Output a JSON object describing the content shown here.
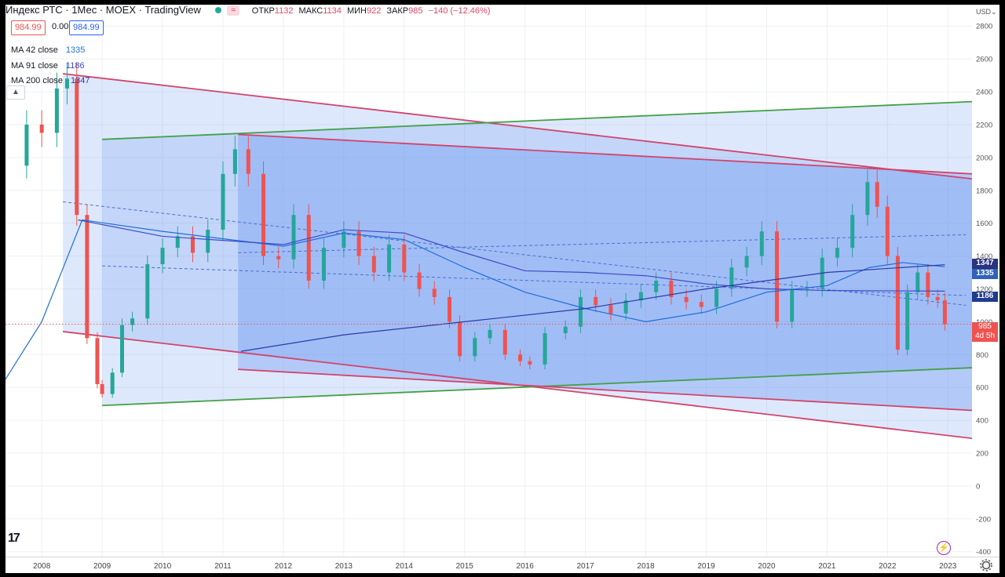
{
  "header": {
    "title": "Индекс РТС · 1Мес · MOEX · TradingView",
    "ohlc": [
      {
        "label": "ОТКР",
        "value": "1132"
      },
      {
        "label": "МАКС",
        "value": "1134"
      },
      {
        "label": "МИН",
        "value": "922"
      },
      {
        "label": "ЗАКР",
        "value": "985"
      }
    ],
    "change": "−140 (−12.46%)",
    "bid": "984.99",
    "spread": "0.00",
    "ask": "984.99",
    "currency": "USD",
    "currency_icon": "chevron-down-icon"
  },
  "indicators": [
    {
      "label": "MA 42 close",
      "value": "1335",
      "color": "#1e6fd9"
    },
    {
      "label": "MA 91 close",
      "value": "1186",
      "color": "#3e4bc6"
    },
    {
      "label": "MA 200 close",
      "value": "1347",
      "color": "#2a3aa8"
    }
  ],
  "price_tags": [
    {
      "value": "1347",
      "color": "#2a3480"
    },
    {
      "value": "1335",
      "color": "#2f63b8"
    },
    {
      "value": "1186",
      "color": "#1f3b8f"
    },
    {
      "value": "985",
      "sub": "4d 5h",
      "color": "#ef5350"
    }
  ],
  "colors": {
    "up": "#26a69a",
    "down": "#ef5350",
    "channel_red": "#d1446b",
    "channel_green": "#43a047",
    "fill": "#5b8df0"
  },
  "chart_data": {
    "type": "candlestick",
    "interval": "1 month",
    "y_ticks": [
      -400,
      -200,
      0,
      200,
      400,
      600,
      800,
      1000,
      1200,
      1400,
      1600,
      1800,
      2000,
      2200,
      2400,
      2600,
      2800
    ],
    "x_ticks": [
      "2008",
      "2009",
      "2010",
      "2011",
      "2012",
      "2013",
      "2014",
      "2015",
      "2016",
      "2017",
      "2018",
      "2019",
      "2020",
      "2021",
      "2022",
      "2023"
    ],
    "ylim": [
      -430,
      2930
    ],
    "xlim": [
      2007.4,
      2023.4
    ],
    "grid": true,
    "last_price": 985,
    "closes": [
      {
        "year": 2007.5,
        "value": 1950
      },
      {
        "year": 2007.75,
        "value": 2200
      },
      {
        "year": 2008.0,
        "value": 2150
      },
      {
        "year": 2008.25,
        "value": 2420
      },
      {
        "year": 2008.42,
        "value": 2480
      },
      {
        "year": 2008.58,
        "value": 1650
      },
      {
        "year": 2008.75,
        "value": 900
      },
      {
        "year": 2008.92,
        "value": 620
      },
      {
        "year": 2009.0,
        "value": 560
      },
      {
        "year": 2009.17,
        "value": 690
      },
      {
        "year": 2009.33,
        "value": 980
      },
      {
        "year": 2009.5,
        "value": 1020
      },
      {
        "year": 2009.75,
        "value": 1350
      },
      {
        "year": 2010.0,
        "value": 1450
      },
      {
        "year": 2010.25,
        "value": 1520
      },
      {
        "year": 2010.5,
        "value": 1420
      },
      {
        "year": 2010.75,
        "value": 1560
      },
      {
        "year": 2011.0,
        "value": 1900
      },
      {
        "year": 2011.2,
        "value": 2050
      },
      {
        "year": 2011.42,
        "value": 1900
      },
      {
        "year": 2011.67,
        "value": 1400
      },
      {
        "year": 2011.92,
        "value": 1380
      },
      {
        "year": 2012.17,
        "value": 1650
      },
      {
        "year": 2012.42,
        "value": 1250
      },
      {
        "year": 2012.67,
        "value": 1450
      },
      {
        "year": 2013.0,
        "value": 1550
      },
      {
        "year": 2013.25,
        "value": 1400
      },
      {
        "year": 2013.5,
        "value": 1300
      },
      {
        "year": 2013.75,
        "value": 1470
      },
      {
        "year": 2014.0,
        "value": 1300
      },
      {
        "year": 2014.25,
        "value": 1200
      },
      {
        "year": 2014.5,
        "value": 1150
      },
      {
        "year": 2014.75,
        "value": 1000
      },
      {
        "year": 2014.92,
        "value": 790
      },
      {
        "year": 2015.17,
        "value": 900
      },
      {
        "year": 2015.42,
        "value": 950
      },
      {
        "year": 2015.67,
        "value": 800
      },
      {
        "year": 2015.92,
        "value": 760
      },
      {
        "year": 2016.08,
        "value": 740
      },
      {
        "year": 2016.33,
        "value": 930
      },
      {
        "year": 2016.67,
        "value": 970
      },
      {
        "year": 2016.92,
        "value": 1150
      },
      {
        "year": 2017.17,
        "value": 1100
      },
      {
        "year": 2017.42,
        "value": 1050
      },
      {
        "year": 2017.67,
        "value": 1130
      },
      {
        "year": 2017.92,
        "value": 1180
      },
      {
        "year": 2018.17,
        "value": 1250
      },
      {
        "year": 2018.42,
        "value": 1150
      },
      {
        "year": 2018.67,
        "value": 1120
      },
      {
        "year": 2018.92,
        "value": 1090
      },
      {
        "year": 2019.17,
        "value": 1200
      },
      {
        "year": 2019.42,
        "value": 1330
      },
      {
        "year": 2019.67,
        "value": 1400
      },
      {
        "year": 2019.92,
        "value": 1550
      },
      {
        "year": 2020.17,
        "value": 1000
      },
      {
        "year": 2020.42,
        "value": 1200
      },
      {
        "year": 2020.67,
        "value": 1200
      },
      {
        "year": 2020.92,
        "value": 1390
      },
      {
        "year": 2021.17,
        "value": 1450
      },
      {
        "year": 2021.42,
        "value": 1650
      },
      {
        "year": 2021.67,
        "value": 1850
      },
      {
        "year": 2021.83,
        "value": 1700
      },
      {
        "year": 2022.0,
        "value": 1400
      },
      {
        "year": 2022.17,
        "value": 830
      },
      {
        "year": 2022.33,
        "value": 1180
      },
      {
        "year": 2022.5,
        "value": 1300
      },
      {
        "year": 2022.67,
        "value": 1150
      },
      {
        "year": 2022.83,
        "value": 1130
      },
      {
        "year": 2022.95,
        "value": 985
      }
    ],
    "ma_42": [
      {
        "year": 2007.4,
        "value": 650
      },
      {
        "year": 2008.0,
        "value": 1000
      },
      {
        "year": 2008.67,
        "value": 1620
      },
      {
        "year": 2010.0,
        "value": 1550
      },
      {
        "year": 2012.0,
        "value": 1460
      },
      {
        "year": 2013.0,
        "value": 1540
      },
      {
        "year": 2014.0,
        "value": 1500
      },
      {
        "year": 2015.0,
        "value": 1330
      },
      {
        "year": 2016.0,
        "value": 1180
      },
      {
        "year": 2017.0,
        "value": 1080
      },
      {
        "year": 2018.0,
        "value": 1000
      },
      {
        "year": 2019.0,
        "value": 1060
      },
      {
        "year": 2020.0,
        "value": 1180
      },
      {
        "year": 2021.0,
        "value": 1220
      },
      {
        "year": 2021.7,
        "value": 1330
      },
      {
        "year": 2022.25,
        "value": 1360
      },
      {
        "year": 2022.95,
        "value": 1335
      }
    ],
    "ma_91": [
      {
        "year": 2008.6,
        "value": 1620
      },
      {
        "year": 2010.0,
        "value": 1520
      },
      {
        "year": 2012.0,
        "value": 1470
      },
      {
        "year": 2013.0,
        "value": 1560
      },
      {
        "year": 2014.0,
        "value": 1540
      },
      {
        "year": 2015.0,
        "value": 1420
      },
      {
        "year": 2016.0,
        "value": 1310
      },
      {
        "year": 2017.0,
        "value": 1300
      },
      {
        "year": 2018.0,
        "value": 1280
      },
      {
        "year": 2019.0,
        "value": 1230
      },
      {
        "year": 2020.0,
        "value": 1200
      },
      {
        "year": 2021.0,
        "value": 1190
      },
      {
        "year": 2022.95,
        "value": 1186
      }
    ],
    "ma_200": [
      {
        "year": 2011.3,
        "value": 820
      },
      {
        "year": 2013.0,
        "value": 920
      },
      {
        "year": 2015.0,
        "value": 1000
      },
      {
        "year": 2017.0,
        "value": 1080
      },
      {
        "year": 2019.0,
        "value": 1200
      },
      {
        "year": 2021.0,
        "value": 1300
      },
      {
        "year": 2022.95,
        "value": 1347
      }
    ],
    "channels": [
      {
        "name": "",
        "color": "#d1446b",
        "upper": [
          [
            2008.35,
            2510
          ],
          [
            2023.4,
            1870
          ]
        ],
        "lower": [
          [
            2008.35,
            940
          ],
          [
            2023.4,
            290
          ]
        ]
      },
      {
        "name": "",
        "color": "#43a047",
        "upper": [
          [
            2009.0,
            2110
          ],
          [
            2023.4,
            2340
          ]
        ],
        "lower": [
          [
            2009.0,
            490
          ],
          [
            2023.4,
            720
          ]
        ]
      },
      {
        "name": "",
        "color": "#d1446b",
        "upper": [
          [
            2011.25,
            2140
          ],
          [
            2023.4,
            1900
          ]
        ],
        "lower": [
          [
            2011.25,
            710
          ],
          [
            2023.4,
            460
          ]
        ]
      }
    ],
    "dashed_lines": [
      {
        "color": "#4a6fd0",
        "points": [
          [
            2008.35,
            1730
          ],
          [
            2023.3,
            1100
          ]
        ]
      },
      {
        "color": "#4a6fd0",
        "points": [
          [
            2009.0,
            1340
          ],
          [
            2023.3,
            1160
          ]
        ]
      },
      {
        "color": "#4a6fd0",
        "points": [
          [
            2011.25,
            1420
          ],
          [
            2023.3,
            1530
          ]
        ]
      }
    ]
  }
}
